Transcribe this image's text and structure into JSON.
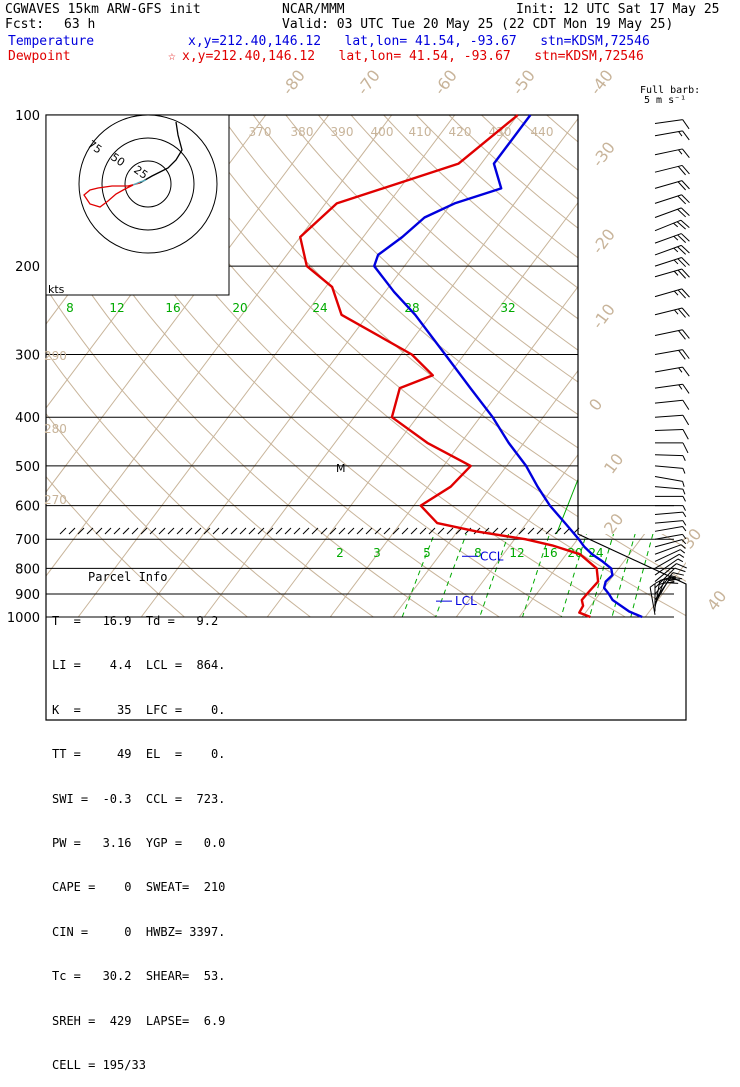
{
  "header": {
    "model": "CGWAVES 15km ARW-GFS init",
    "center": "NCAR/MMM",
    "init": "Init: 12 UTC Sat 17 May 25",
    "fcst_label": "Fcst:",
    "fcst_value": "63 h",
    "valid": "Valid: 03 UTC Tue 20 May 25 (22 CDT Mon 19 May 25)",
    "temp_label": "Temperature",
    "temp_info": "x,y=212.40,146.12   lat,lon= 41.54, -93.67   stn=KDSM,72546",
    "dew_label": "Dewpoint",
    "dew_star": "☆",
    "dew_info": "x,y=212.40,146.12   lat,lon= 41.54, -93.67   stn=KDSM,72546"
  },
  "barb_key": {
    "line1": "Full barb:",
    "line2": "5 m s⁻¹"
  },
  "colors": {
    "temperature": "#0000dd",
    "dewpoint": "#e00000",
    "isotherm": "#c8b49a",
    "mixing_ratio": "#00aa00",
    "isobar": "#000000"
  },
  "chart_data": {
    "type": "skew-t",
    "pressure_ticks": [
      "100",
      "200",
      "300",
      "400",
      "500",
      "600",
      "700",
      "800",
      "900",
      "1000"
    ],
    "pressure_levels": [
      100,
      200,
      300,
      400,
      500,
      600,
      700,
      800,
      900,
      1000
    ],
    "isotherm_labels": [
      "-80",
      "-70",
      "-60",
      "-50",
      "-40",
      "-30",
      "-20",
      "-10",
      "0",
      "10",
      "20",
      "30",
      "40"
    ],
    "theta_labels_upper": [
      "370",
      "380",
      "390",
      "400",
      "410",
      "420",
      "430",
      "440"
    ],
    "theta_labels_lower": [
      "290",
      "280",
      "270"
    ],
    "mixing_ratio_labels_upper": [
      "8",
      "12",
      "16",
      "20",
      "24",
      "28",
      "32"
    ],
    "mixing_ratio_labels_lower": [
      "2",
      "3",
      "5",
      "8",
      "12",
      "16",
      "20",
      "24"
    ],
    "temperature_profile": [
      {
        "p": 1000,
        "t": 29.5
      },
      {
        "p": 975,
        "t": 26.8
      },
      {
        "p": 950,
        "t": 24.8
      },
      {
        "p": 925,
        "t": 22.8
      },
      {
        "p": 900,
        "t": 21.5
      },
      {
        "p": 875,
        "t": 20.0
      },
      {
        "p": 850,
        "t": 19.5
      },
      {
        "p": 825,
        "t": 19.8
      },
      {
        "p": 800,
        "t": 18.8
      },
      {
        "p": 775,
        "t": 16.6
      },
      {
        "p": 750,
        "t": 14.1
      },
      {
        "p": 725,
        "t": 12.0
      },
      {
        "p": 700,
        "t": 10.2
      },
      {
        "p": 650,
        "t": 6.1
      },
      {
        "p": 600,
        "t": 1.6
      },
      {
        "p": 550,
        "t": -2.6
      },
      {
        "p": 500,
        "t": -6.9
      },
      {
        "p": 450,
        "t": -12.4
      },
      {
        "p": 400,
        "t": -18.0
      },
      {
        "p": 350,
        "t": -25.0
      },
      {
        "p": 300,
        "t": -33.0
      },
      {
        "p": 250,
        "t": -42.5
      },
      {
        "p": 225,
        "t": -48.6
      },
      {
        "p": 200,
        "t": -54.8
      },
      {
        "p": 190,
        "t": -55.5
      },
      {
        "p": 175,
        "t": -53.8
      },
      {
        "p": 160,
        "t": -52.6
      },
      {
        "p": 150,
        "t": -49.5
      },
      {
        "p": 140,
        "t": -43.9
      },
      {
        "p": 125,
        "t": -48.0
      },
      {
        "p": 100,
        "t": -48.0
      }
    ],
    "dewpoint_profile": [
      {
        "p": 1000,
        "t": 21.3
      },
      {
        "p": 980,
        "t": 19.0
      },
      {
        "p": 950,
        "t": 18.8
      },
      {
        "p": 925,
        "t": 17.9
      },
      {
        "p": 900,
        "t": 18.0
      },
      {
        "p": 850,
        "t": 18.3
      },
      {
        "p": 800,
        "t": 16.5
      },
      {
        "p": 750,
        "t": 12.2
      },
      {
        "p": 720,
        "t": 6.7
      },
      {
        "p": 700,
        "t": 1.7
      },
      {
        "p": 675,
        "t": -7.1
      },
      {
        "p": 650,
        "t": -14.2
      },
      {
        "p": 600,
        "t": -18.9
      },
      {
        "p": 550,
        "t": -16.4
      },
      {
        "p": 500,
        "t": -15.7
      },
      {
        "p": 450,
        "t": -25.3
      },
      {
        "p": 400,
        "t": -34.0
      },
      {
        "p": 350,
        "t": -36.2
      },
      {
        "p": 330,
        "t": -32.5
      },
      {
        "p": 300,
        "t": -38.3
      },
      {
        "p": 250,
        "t": -54.2
      },
      {
        "p": 220,
        "t": -59.0
      },
      {
        "p": 200,
        "t": -65.5
      },
      {
        "p": 175,
        "t": -70.0
      },
      {
        "p": 150,
        "t": -68.2
      },
      {
        "p": 125,
        "t": -53.6
      },
      {
        "p": 100,
        "t": -50.0
      }
    ],
    "markers": [
      {
        "label": "CCL",
        "p": 723
      },
      {
        "label": "LCL",
        "p": 864
      },
      {
        "label": "M",
        "p": 500
      }
    ],
    "wind_barbs": [
      {
        "p": 990,
        "spd": 8,
        "dir": 170
      },
      {
        "p": 975,
        "spd": 12,
        "dir": 180
      },
      {
        "p": 960,
        "spd": 18,
        "dir": 190
      },
      {
        "p": 950,
        "spd": 22,
        "dir": 200
      },
      {
        "p": 940,
        "spd": 20,
        "dir": 210
      },
      {
        "p": 925,
        "spd": 18,
        "dir": 215
      },
      {
        "p": 900,
        "spd": 15,
        "dir": 220
      },
      {
        "p": 875,
        "spd": 12,
        "dir": 225
      },
      {
        "p": 850,
        "spd": 10,
        "dir": 230
      },
      {
        "p": 825,
        "spd": 9,
        "dir": 235
      },
      {
        "p": 800,
        "spd": 9,
        "dir": 240
      },
      {
        "p": 775,
        "spd": 8,
        "dir": 245
      },
      {
        "p": 750,
        "spd": 8,
        "dir": 250
      },
      {
        "p": 725,
        "spd": 8,
        "dir": 255
      },
      {
        "p": 700,
        "spd": 8,
        "dir": 260
      },
      {
        "p": 675,
        "spd": 7,
        "dir": 260
      },
      {
        "p": 650,
        "spd": 7,
        "dir": 265
      },
      {
        "p": 625,
        "spd": 6,
        "dir": 265
      },
      {
        "p": 600,
        "spd": 6,
        "dir": 270
      },
      {
        "p": 575,
        "spd": 5,
        "dir": 270
      },
      {
        "p": 550,
        "spd": 5,
        "dir": 275
      },
      {
        "p": 525,
        "spd": 5,
        "dir": 280
      },
      {
        "p": 500,
        "spd": 8,
        "dir": 275
      },
      {
        "p": 475,
        "spd": 9,
        "dir": 272
      },
      {
        "p": 450,
        "spd": 10,
        "dir": 270
      },
      {
        "p": 425,
        "spd": 11,
        "dir": 268
      },
      {
        "p": 400,
        "spd": 12,
        "dir": 266
      },
      {
        "p": 375,
        "spd": 14,
        "dir": 264
      },
      {
        "p": 350,
        "spd": 16,
        "dir": 262
      },
      {
        "p": 325,
        "spd": 18,
        "dir": 260
      },
      {
        "p": 300,
        "spd": 21,
        "dir": 260
      },
      {
        "p": 275,
        "spd": 23,
        "dir": 258
      },
      {
        "p": 250,
        "spd": 26,
        "dir": 256
      },
      {
        "p": 230,
        "spd": 26,
        "dir": 254
      },
      {
        "p": 210,
        "spd": 27,
        "dir": 254
      },
      {
        "p": 200,
        "spd": 27,
        "dir": 252
      },
      {
        "p": 190,
        "spd": 27,
        "dir": 250
      },
      {
        "p": 180,
        "spd": 26,
        "dir": 250
      },
      {
        "p": 170,
        "spd": 25,
        "dir": 248
      },
      {
        "p": 160,
        "spd": 24,
        "dir": 250
      },
      {
        "p": 150,
        "spd": 23,
        "dir": 252
      },
      {
        "p": 140,
        "spd": 22,
        "dir": 254
      },
      {
        "p": 130,
        "spd": 20,
        "dir": 256
      },
      {
        "p": 120,
        "spd": 18,
        "dir": 258
      },
      {
        "p": 110,
        "spd": 16,
        "dir": 260
      },
      {
        "p": 104,
        "spd": 14,
        "dir": 262
      }
    ],
    "hodograph": {
      "rings": [
        "75",
        "50",
        "25"
      ],
      "units": "kts"
    }
  },
  "parcel_info": {
    "title": "Parcel Info",
    "rows": [
      "T  =   16.9  Td =   9.2",
      "LI =    4.4  LCL =  864.",
      "K  =     35  LFC =    0.",
      "TT =     49  EL  =    0.",
      "SWI =  -0.3  CCL =  723.",
      "PW =   3.16  YGP =   0.0",
      "CAPE =    0  SWEAT=  210",
      "CIN =     0  HWBZ= 3397.",
      "Tc =   30.2  SHEAR=  53.",
      "SREH =  429  LAPSE=  6.9",
      "CELL = 195/33"
    ]
  }
}
